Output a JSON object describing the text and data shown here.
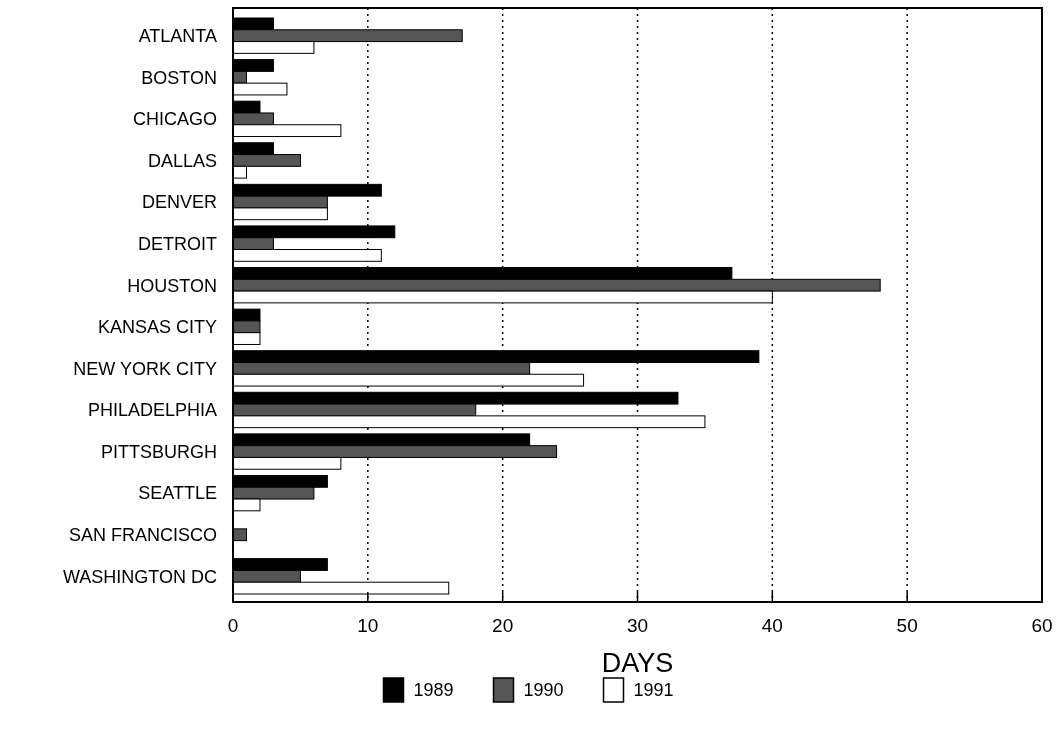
{
  "chart_data": {
    "type": "bar",
    "orientation": "horizontal",
    "xlabel": "DAYS",
    "categories": [
      "ATLANTA",
      "BOSTON",
      "CHICAGO",
      "DALLAS",
      "DENVER",
      "DETROIT",
      "HOUSTON",
      "KANSAS CITY",
      "NEW YORK CITY",
      "PHILADELPHIA",
      "PITTSBURGH",
      "SEATTLE",
      "SAN FRANCISCO",
      "WASHINGTON DC"
    ],
    "series": [
      {
        "name": "1989",
        "color": "#000000",
        "values": [
          3,
          3,
          2,
          3,
          11,
          12,
          37,
          2,
          39,
          33,
          22,
          7,
          null,
          7
        ]
      },
      {
        "name": "1990",
        "color": "#555555",
        "values": [
          17,
          1,
          3,
          5,
          7,
          3,
          48,
          2,
          22,
          18,
          24,
          6,
          1,
          5
        ]
      },
      {
        "name": "1991",
        "color": "#ffffff",
        "values": [
          6,
          4,
          8,
          1,
          7,
          11,
          40,
          2,
          26,
          35,
          8,
          2,
          null,
          16
        ]
      }
    ],
    "xlim": [
      0,
      60
    ],
    "xticks": [
      0,
      10,
      20,
      30,
      40,
      50,
      60
    ],
    "grid": "x",
    "legend": "bottom"
  }
}
